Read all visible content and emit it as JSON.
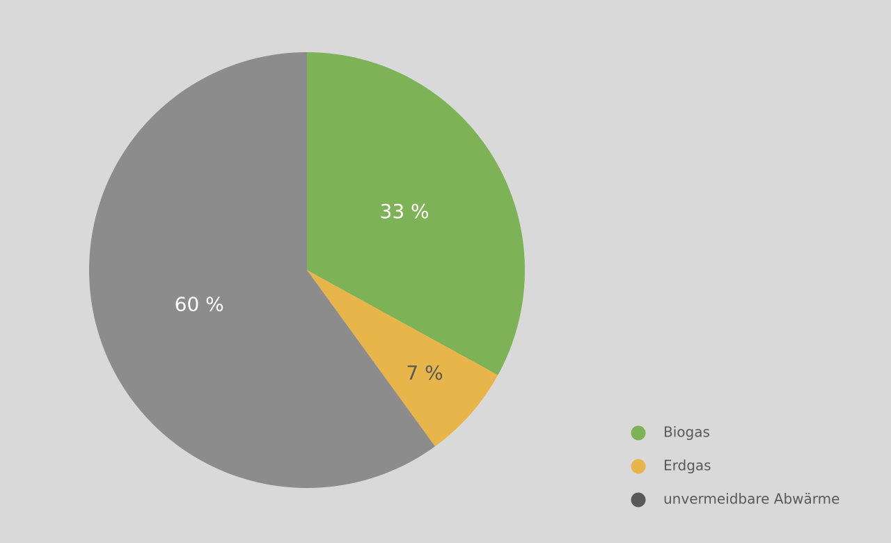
{
  "chart_data": {
    "type": "pie",
    "categories": [
      "Biogas",
      "Erdgas",
      "unvermeidbare Abwärme"
    ],
    "values": [
      33,
      7,
      60
    ],
    "value_labels": [
      "33 %",
      "7 %",
      "60 %"
    ],
    "colors": [
      "#7db356",
      "#e8b54a",
      "#8c8c8c"
    ],
    "legend_colors": [
      "#7db356",
      "#e8b54a",
      "#595959"
    ],
    "label_colors": [
      "#ffffff",
      "#595959",
      "#ffffff"
    ],
    "legend": "bottom-right"
  }
}
